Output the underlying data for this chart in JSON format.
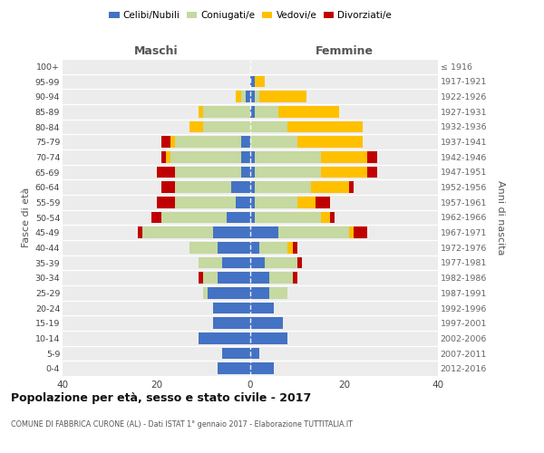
{
  "age_groups": [
    "0-4",
    "5-9",
    "10-14",
    "15-19",
    "20-24",
    "25-29",
    "30-34",
    "35-39",
    "40-44",
    "45-49",
    "50-54",
    "55-59",
    "60-64",
    "65-69",
    "70-74",
    "75-79",
    "80-84",
    "85-89",
    "90-94",
    "95-99",
    "100+"
  ],
  "birth_years": [
    "2012-2016",
    "2007-2011",
    "2002-2006",
    "1997-2001",
    "1992-1996",
    "1987-1991",
    "1982-1986",
    "1977-1981",
    "1972-1976",
    "1967-1971",
    "1962-1966",
    "1957-1961",
    "1952-1956",
    "1947-1951",
    "1942-1946",
    "1937-1941",
    "1932-1936",
    "1927-1931",
    "1922-1926",
    "1917-1921",
    "≤ 1916"
  ],
  "colors": {
    "celibi": "#4472c4",
    "coniugati": "#c5d9a0",
    "vedovi": "#ffc000",
    "divorziati": "#c00000"
  },
  "males": {
    "celibi": [
      7,
      6,
      11,
      8,
      8,
      9,
      7,
      6,
      7,
      8,
      5,
      3,
      4,
      2,
      2,
      2,
      0,
      0,
      1,
      0,
      0
    ],
    "coniugati": [
      0,
      0,
      0,
      0,
      0,
      1,
      3,
      5,
      6,
      15,
      14,
      13,
      12,
      14,
      15,
      14,
      10,
      10,
      1,
      0,
      0
    ],
    "vedovi": [
      0,
      0,
      0,
      0,
      0,
      0,
      0,
      0,
      0,
      0,
      0,
      0,
      0,
      0,
      1,
      1,
      3,
      1,
      1,
      0,
      0
    ],
    "divorziati": [
      0,
      0,
      0,
      0,
      0,
      0,
      1,
      0,
      0,
      1,
      2,
      4,
      3,
      4,
      1,
      2,
      0,
      0,
      0,
      0,
      0
    ]
  },
  "females": {
    "nubili": [
      5,
      2,
      8,
      7,
      5,
      4,
      4,
      3,
      2,
      6,
      1,
      1,
      1,
      1,
      1,
      0,
      0,
      1,
      1,
      1,
      0
    ],
    "coniugate": [
      0,
      0,
      0,
      0,
      0,
      4,
      5,
      7,
      6,
      15,
      14,
      9,
      12,
      14,
      14,
      10,
      8,
      5,
      1,
      0,
      0
    ],
    "vedove": [
      0,
      0,
      0,
      0,
      0,
      0,
      0,
      0,
      1,
      1,
      2,
      4,
      8,
      10,
      10,
      14,
      16,
      13,
      10,
      2,
      0
    ],
    "divorziate": [
      0,
      0,
      0,
      0,
      0,
      0,
      1,
      1,
      1,
      3,
      1,
      3,
      1,
      2,
      2,
      0,
      0,
      0,
      0,
      0,
      0
    ]
  },
  "title": "Popolazione per età, sesso e stato civile - 2017",
  "subtitle": "COMUNE DI FABBRICA CURONE (AL) - Dati ISTAT 1° gennaio 2017 - Elaborazione TUTTITALIA.IT",
  "xlabel_left": "Maschi",
  "xlabel_right": "Femmine",
  "ylabel_left": "Fasce di età",
  "ylabel_right": "Anni di nascita",
  "xlim": 40,
  "legend_labels": [
    "Celibi/Nubili",
    "Coniugati/e",
    "Vedovi/e",
    "Divorziati/e"
  ],
  "background_color": "#ffffff",
  "plot_bg": "#ececec",
  "bar_height": 0.75
}
